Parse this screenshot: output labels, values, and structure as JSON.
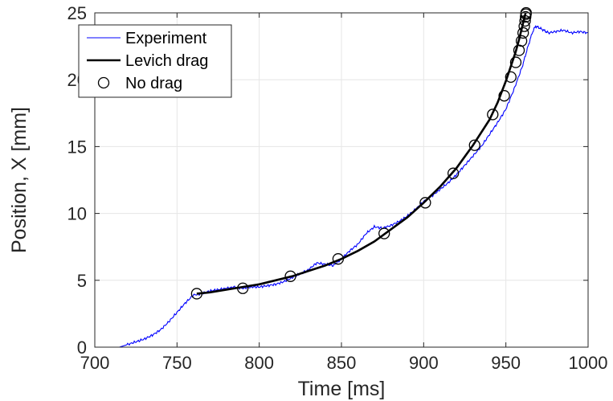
{
  "chart_data": {
    "type": "line",
    "xlabel": "Time [ms]",
    "ylabel": "Position, X [mm]",
    "xlim": [
      700,
      1000
    ],
    "ylim": [
      0,
      25
    ],
    "xticks": [
      700,
      750,
      800,
      850,
      900,
      950,
      1000
    ],
    "yticks": [
      0,
      5,
      10,
      15,
      20,
      25
    ],
    "grid": true,
    "legend": "top-left",
    "series": [
      {
        "name": "Experiment",
        "style": "line",
        "color": "#0000ff",
        "x": [
          715,
          720,
          725,
          730,
          735,
          740,
          745,
          750,
          755,
          760,
          765,
          770,
          775,
          780,
          785,
          790,
          795,
          800,
          805,
          810,
          815,
          820,
          825,
          830,
          835,
          840,
          845,
          850,
          855,
          860,
          865,
          870,
          875,
          880,
          885,
          890,
          895,
          900,
          905,
          910,
          915,
          920,
          925,
          930,
          935,
          940,
          945,
          950,
          955,
          960,
          963,
          966,
          968,
          970,
          973,
          976,
          980,
          985,
          990,
          995,
          1000
        ],
        "y": [
          0.0,
          0.2,
          0.4,
          0.6,
          0.9,
          1.3,
          1.9,
          2.6,
          3.3,
          3.9,
          4.0,
          4.2,
          4.3,
          4.4,
          4.5,
          4.4,
          4.5,
          4.5,
          4.6,
          4.7,
          4.9,
          5.2,
          5.5,
          5.8,
          6.3,
          6.2,
          6.1,
          6.6,
          7.2,
          7.7,
          8.5,
          9.0,
          8.9,
          9.1,
          9.4,
          9.8,
          10.3,
          10.9,
          11.3,
          11.8,
          12.3,
          12.9,
          13.6,
          14.3,
          15.0,
          15.9,
          16.8,
          17.8,
          19.3,
          21.0,
          22.3,
          23.5,
          24.0,
          23.9,
          23.7,
          23.5,
          23.6,
          23.7,
          23.5,
          23.6,
          23.5
        ]
      },
      {
        "name": "Levich drag",
        "style": "line",
        "color": "#000000",
        "x": [
          762,
          770,
          780,
          790,
          800,
          810,
          820,
          830,
          840,
          850,
          860,
          870,
          880,
          890,
          900,
          910,
          920,
          930,
          940,
          945,
          950,
          953,
          956,
          958,
          960,
          961,
          962
        ],
        "y": [
          4.0,
          4.1,
          4.3,
          4.5,
          4.7,
          5.0,
          5.3,
          5.7,
          6.1,
          6.6,
          7.2,
          7.9,
          8.8,
          9.7,
          10.8,
          12.0,
          13.4,
          15.1,
          17.0,
          18.3,
          19.9,
          21.0,
          22.1,
          23.0,
          24.0,
          24.5,
          25.0
        ]
      },
      {
        "name": "No drag",
        "style": "markers",
        "color": "#000000",
        "x": [
          762,
          790,
          819,
          848,
          876,
          901,
          918,
          931,
          942,
          949,
          953,
          956,
          958,
          959.5,
          960.5,
          961.2,
          961.7,
          962.0,
          962.2,
          962.3
        ],
        "y": [
          4.0,
          4.4,
          5.3,
          6.6,
          8.5,
          10.8,
          13.0,
          15.1,
          17.4,
          18.8,
          20.2,
          21.3,
          22.2,
          22.9,
          23.5,
          24.0,
          24.4,
          24.7,
          24.9,
          25.0
        ]
      }
    ]
  }
}
